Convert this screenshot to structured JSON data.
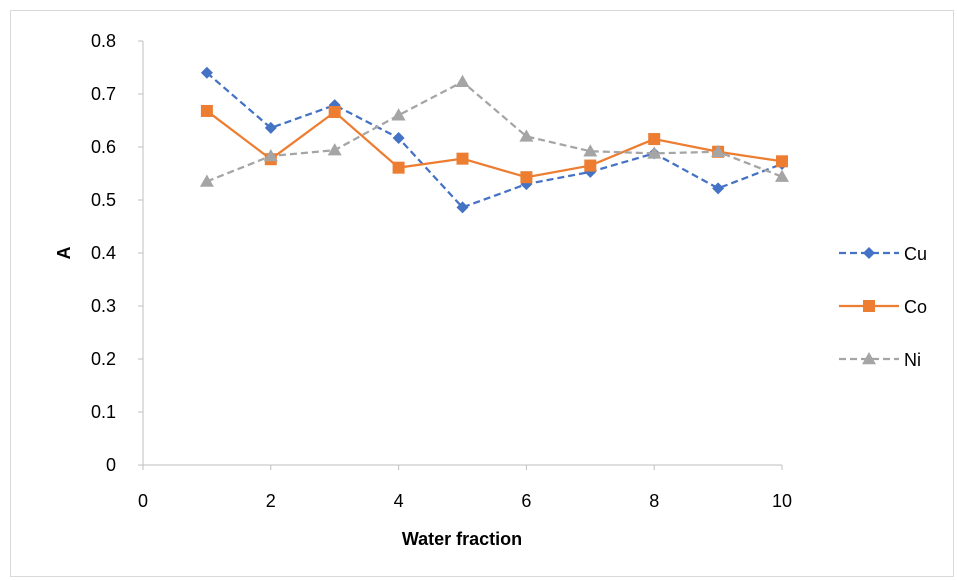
{
  "chart_data": {
    "type": "line",
    "title": "",
    "xlabel": "Water fraction",
    "ylabel": "A",
    "xlim": [
      0,
      10
    ],
    "ylim": [
      0,
      0.8
    ],
    "x_ticks": [
      "0",
      "2",
      "4",
      "6",
      "8",
      "10"
    ],
    "y_ticks": [
      "0",
      "0.1",
      "0.2",
      "0.3",
      "0.4",
      "0.5",
      "0.6",
      "0.7",
      "0.8"
    ],
    "grid": false,
    "legend_position": "right",
    "x": [
      1,
      2,
      3,
      4,
      5,
      6,
      7,
      8,
      9,
      10
    ],
    "series": [
      {
        "name": "Cu",
        "color": "#4472C4",
        "marker": "diamond",
        "line": "dashed",
        "values": [
          0.74,
          0.636,
          0.679,
          0.617,
          0.486,
          0.53,
          0.553,
          0.588,
          0.522,
          0.568
        ]
      },
      {
        "name": "Co",
        "color": "#ED7D31",
        "marker": "square",
        "line": "solid",
        "values": [
          0.668,
          0.577,
          0.666,
          0.561,
          0.578,
          0.543,
          0.565,
          0.615,
          0.591,
          0.573
        ]
      },
      {
        "name": "Ni",
        "color": "#A5A5A5",
        "marker": "triangle",
        "line": "dashed",
        "values": [
          0.535,
          0.583,
          0.594,
          0.66,
          0.723,
          0.62,
          0.592,
          0.588,
          0.591,
          0.544
        ]
      }
    ]
  }
}
